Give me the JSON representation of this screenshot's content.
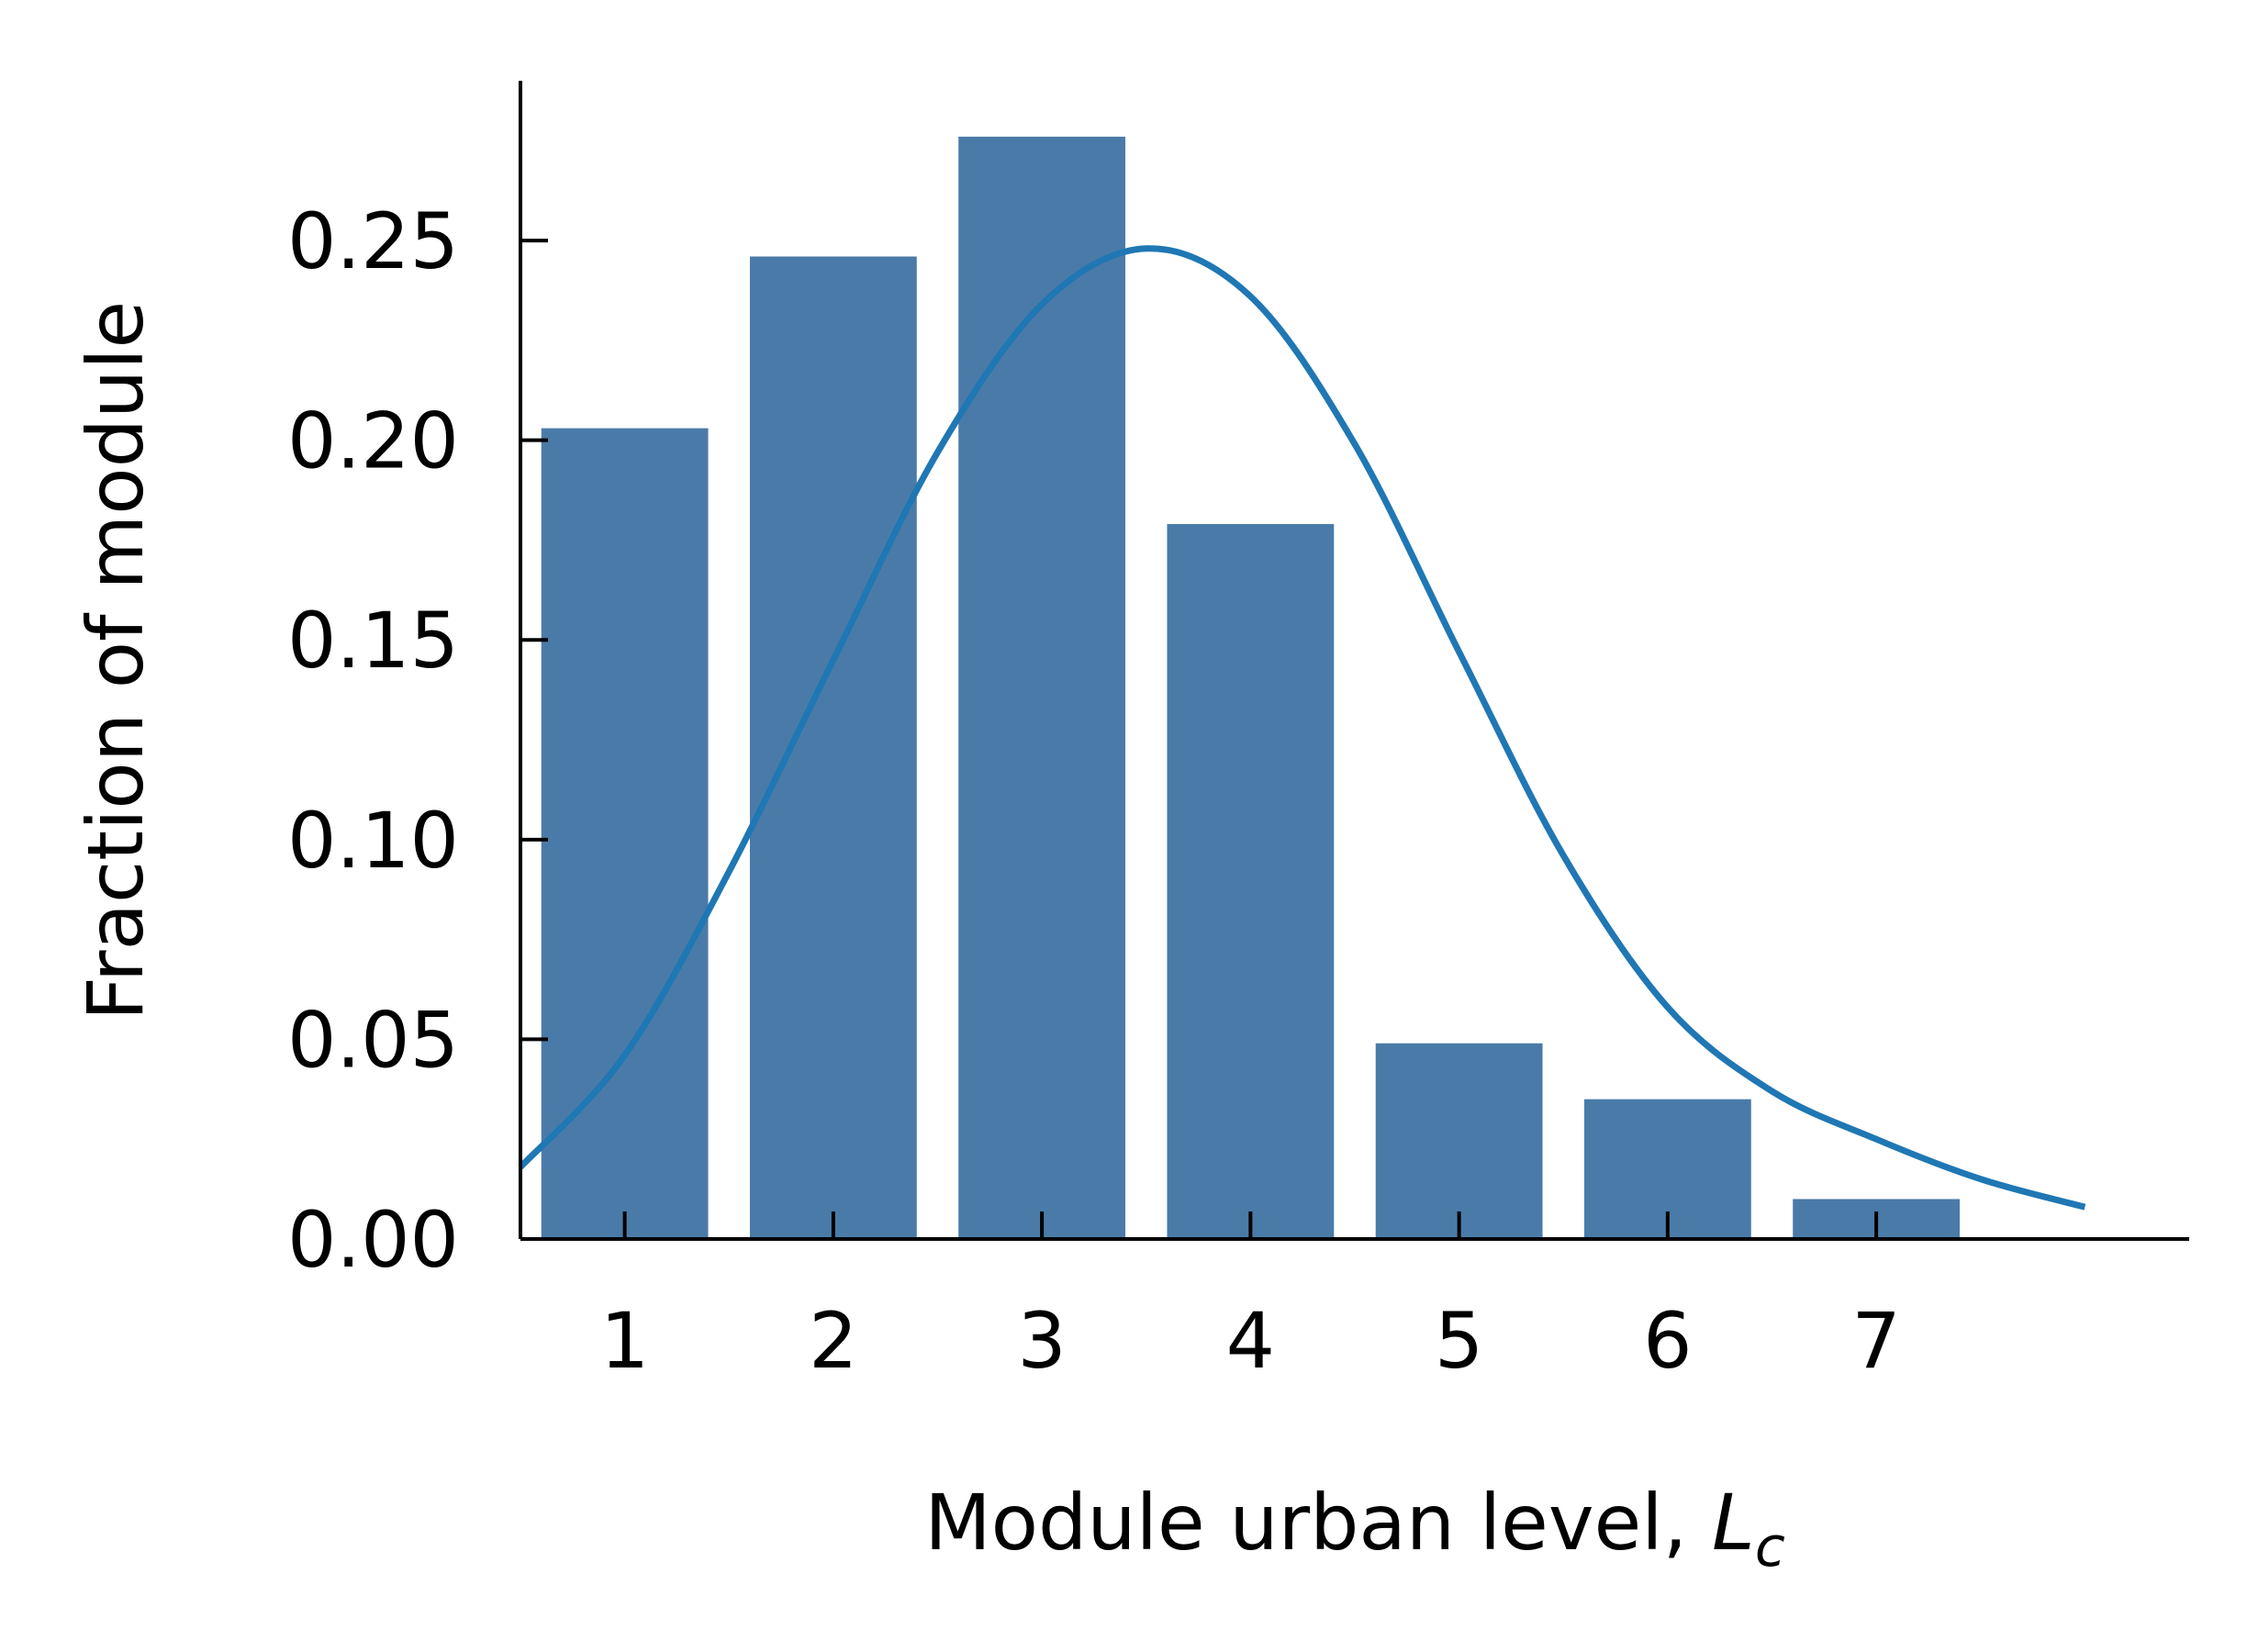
{
  "chart_data": {
    "type": "bar",
    "categories": [
      "1",
      "2",
      "3",
      "4",
      "5",
      "6",
      "7"
    ],
    "values": [
      0.203,
      0.246,
      0.276,
      0.179,
      0.049,
      0.035,
      0.01
    ],
    "series": [
      {
        "kind": "line",
        "x": [
          0.5,
          1.0,
          1.5,
          2.0,
          2.5,
          3.0,
          3.5,
          4.0,
          4.5,
          5.0,
          5.5,
          6.0,
          6.5,
          7.0,
          7.5,
          8.0
        ],
        "y": [
          0.018,
          0.046,
          0.092,
          0.145,
          0.197,
          0.234,
          0.248,
          0.236,
          0.199,
          0.147,
          0.096,
          0.058,
          0.037,
          0.025,
          0.015,
          0.008
        ]
      }
    ],
    "xlabel": "Module urban level, ",
    "xlabel_symbol": "L",
    "xlabel_subscript": "c",
    "ylabel": "Fraction of module",
    "yticks": [
      "0.00",
      "0.05",
      "0.10",
      "0.15",
      "0.20",
      "0.25"
    ],
    "ylim": [
      0,
      0.29
    ],
    "xlim": [
      0.5,
      8.5
    ],
    "grid": false,
    "colors": {
      "bar": "#4a7ba8",
      "line": "#1f77b4",
      "axis": "#000000"
    }
  }
}
